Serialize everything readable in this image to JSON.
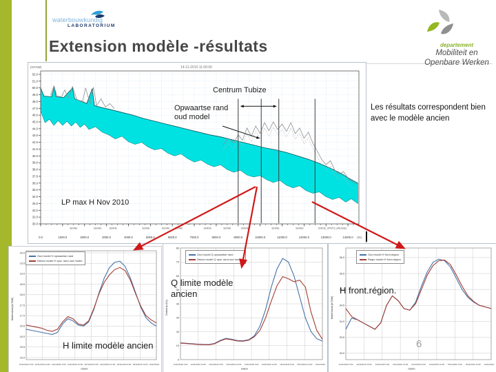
{
  "slide": {
    "title": "Extension modèle -résultats",
    "page_number": "6",
    "note": "Les résultats correspondent bien avec le modèle ancien"
  },
  "logos": {
    "waterbouwkundig": {
      "line1": "waterbouwkundig",
      "line2": "LABORATORIUM"
    },
    "mow": {
      "dept": "departement",
      "line1": "Mobiliteit en",
      "line2": "Openbare Werken"
    }
  },
  "colors": {
    "accent_olive": "#a5b72b",
    "band_cyan": "#00e2e2",
    "arrow_red": "#d01818",
    "series_blue": "#4472a8",
    "series_red": "#a23b32"
  },
  "chart_data": [
    {
      "type": "area",
      "title": "14-11-2010 11:00:00",
      "ylabel": "(mTAW)",
      "xunit": "(m)",
      "xlim": [
        0,
        14500
      ],
      "ylim": [
        30,
        52.5
      ],
      "xticks": [
        0,
        1000,
        2000,
        3000,
        4000,
        5000,
        6000,
        7000,
        8000,
        9000,
        10000,
        11000,
        12000,
        13000,
        14000
      ],
      "yticks": [
        30,
        31,
        32,
        33,
        34,
        35,
        36,
        37,
        38,
        39,
        40,
        41,
        42,
        43,
        44,
        45,
        46,
        47,
        48,
        49,
        50,
        51,
        52
      ],
      "segments": [
        [
          1500,
          "SENNE"
        ],
        [
          2600,
          "SENNE"
        ],
        [
          3300,
          "SENNE"
        ],
        [
          4800,
          "SENNE"
        ],
        [
          5700,
          "SENNE"
        ],
        [
          6300,
          "SENNE"
        ],
        [
          7600,
          "SENNE"
        ],
        [
          8500,
          "SENNE"
        ],
        [
          9300,
          "SENNE"
        ],
        [
          10700,
          "SENNE"
        ],
        [
          11800,
          "SENNE"
        ],
        [
          13300,
          "ZENNE_OPWTS_BRUSSEL"
        ]
      ],
      "band_top": [
        [
          0,
          50.0
        ],
        [
          150,
          48.8
        ],
        [
          500,
          48.7
        ],
        [
          620,
          50.2
        ],
        [
          700,
          48.7
        ],
        [
          1050,
          48.6
        ],
        [
          1450,
          50.0
        ],
        [
          1550,
          48.4
        ],
        [
          1900,
          48.0
        ],
        [
          2100,
          47.7
        ],
        [
          2350,
          49.9
        ],
        [
          2450,
          47.4
        ],
        [
          2800,
          47.1
        ],
        [
          3200,
          46.8
        ],
        [
          3700,
          46.4
        ],
        [
          4200,
          46.0
        ],
        [
          4700,
          45.5
        ],
        [
          5200,
          45.1
        ],
        [
          5700,
          44.7
        ],
        [
          6200,
          44.3
        ],
        [
          6700,
          43.9
        ],
        [
          7200,
          43.5
        ],
        [
          7700,
          43.1
        ],
        [
          8200,
          42.8
        ],
        [
          8700,
          42.4
        ],
        [
          9200,
          42.0
        ],
        [
          9700,
          41.6
        ],
        [
          10200,
          41.2
        ],
        [
          10700,
          40.9
        ],
        [
          11200,
          40.5
        ],
        [
          11700,
          40.0
        ],
        [
          12200,
          39.5
        ],
        [
          12700,
          38.9
        ],
        [
          13200,
          38.2
        ],
        [
          13700,
          37.4
        ],
        [
          14100,
          36.6
        ],
        [
          14450,
          36.0
        ]
      ],
      "band_bottom": [
        [
          0,
          46.6
        ],
        [
          200,
          44.9
        ],
        [
          400,
          45.4
        ],
        [
          600,
          44.5
        ],
        [
          800,
          45.2
        ],
        [
          1000,
          44.5
        ],
        [
          1200,
          45.1
        ],
        [
          1400,
          44.4
        ],
        [
          1600,
          45.0
        ],
        [
          1800,
          44.2
        ],
        [
          2000,
          44.7
        ],
        [
          2200,
          43.9
        ],
        [
          2500,
          44.3
        ],
        [
          2800,
          43.5
        ],
        [
          3100,
          43.1
        ],
        [
          3400,
          42.5
        ],
        [
          3700,
          42.9
        ],
        [
          4000,
          42.1
        ],
        [
          4300,
          41.7
        ],
        [
          4600,
          42.0
        ],
        [
          4900,
          41.3
        ],
        [
          5200,
          40.9
        ],
        [
          5500,
          41.1
        ],
        [
          5800,
          40.4
        ],
        [
          6100,
          40.0
        ],
        [
          6400,
          40.3
        ],
        [
          6700,
          39.6
        ],
        [
          7000,
          39.1
        ],
        [
          7300,
          39.4
        ],
        [
          7600,
          38.8
        ],
        [
          7900,
          38.4
        ],
        [
          8200,
          38.7
        ],
        [
          8500,
          38.0
        ],
        [
          8800,
          37.6
        ],
        [
          9100,
          37.9
        ],
        [
          9400,
          37.2
        ],
        [
          9700,
          36.9
        ],
        [
          10000,
          37.1
        ],
        [
          10300,
          36.5
        ],
        [
          10600,
          36.1
        ],
        [
          10900,
          36.4
        ],
        [
          11200,
          35.7
        ],
        [
          11500,
          35.3
        ],
        [
          11800,
          35.6
        ],
        [
          12100,
          34.9
        ],
        [
          12400,
          34.5
        ],
        [
          12700,
          34.7
        ],
        [
          13000,
          34.0
        ],
        [
          13300,
          33.6
        ],
        [
          13600,
          33.9
        ],
        [
          13900,
          33.2
        ],
        [
          14150,
          33.7
        ],
        [
          14450,
          33.0
        ]
      ],
      "terrain": [
        [
          8300,
          41.6
        ],
        [
          8550,
          42.6
        ],
        [
          8800,
          41.9
        ],
        [
          9000,
          43.1
        ],
        [
          9200,
          42.3
        ],
        [
          9400,
          44.1
        ],
        [
          9600,
          42.9
        ],
        [
          9800,
          44.4
        ],
        [
          10000,
          43.3
        ],
        [
          10200,
          44.9
        ],
        [
          10400,
          43.7
        ],
        [
          10600,
          45.0
        ],
        [
          10800,
          43.9
        ],
        [
          11000,
          44.7
        ],
        [
          11200,
          43.6
        ],
        [
          11400,
          44.9
        ],
        [
          11600,
          43.3
        ],
        [
          11800,
          44.1
        ],
        [
          12000,
          42.6
        ],
        [
          12200,
          43.5
        ],
        [
          12400,
          41.9
        ],
        [
          12600,
          40.7
        ],
        [
          12800,
          39.5
        ],
        [
          13000,
          38.7
        ],
        [
          13200,
          39.3
        ],
        [
          13400,
          37.9
        ],
        [
          13600,
          37.3
        ],
        [
          13800,
          37.7
        ],
        [
          14000,
          36.7
        ],
        [
          14200,
          36.2
        ],
        [
          14450,
          35.8
        ]
      ],
      "left_crest": [
        [
          450,
          48.9
        ],
        [
          600,
          50.3
        ],
        [
          750,
          48.8
        ],
        [
          950,
          48.7
        ],
        [
          1100,
          49.7
        ],
        [
          1250,
          48.5
        ],
        [
          1450,
          50.2
        ],
        [
          1650,
          48.3
        ],
        [
          1900,
          47.9
        ],
        [
          2050,
          50.0
        ],
        [
          2250,
          47.7
        ],
        [
          2400,
          50.1
        ],
        [
          2550,
          47.4
        ],
        [
          2750,
          48.4
        ],
        [
          2950,
          47.2
        ],
        [
          3150,
          47.7
        ],
        [
          3350,
          47.0
        ]
      ],
      "markers": [
        9000,
        10050,
        10850,
        12500
      ],
      "span": {
        "from": 9000,
        "to": 10850,
        "label": "Centrum Tubize"
      },
      "annotations": {
        "centrum": "Centrum Tubize",
        "opwaartse_line1": "Opwaartse rand",
        "opwaartse_line2": "oud model",
        "lp_max": "LP max H Nov 2010"
      }
    },
    {
      "type": "line",
      "label": "H limite modèle ancien",
      "ylabel": "Waterstand [mTAW]",
      "xlabel": "Datum",
      "ylim": [
        14.9,
        20.1
      ],
      "yticks": [
        20,
        19.5,
        19,
        18.5,
        18,
        17.5,
        17,
        16.5,
        16,
        15.5,
        15
      ],
      "ytick_labels": [
        "20.0",
        "19.5",
        "19.0",
        "18.5",
        "18.0",
        "17.5",
        "17.0",
        "16.5",
        "16.0",
        "15.5",
        "15.0"
      ],
      "xtick_labels": [
        "12/11/2010 0:00",
        "12/11/2010 12:00",
        "13/11/2010 0:00",
        "13/11/2010 12:00",
        "14/11/2010 0:00",
        "14/11/2010 12:00",
        "15/11/2010 0:00",
        "15/11/2010 12:00",
        "16/11/2010 0:00"
      ],
      "series": [
        {
          "name": "Oud model H opwaartse rand",
          "color": "#4472a8",
          "values": [
            16.35,
            16.3,
            16.25,
            16.2,
            16.15,
            16.1,
            16.2,
            16.6,
            16.85,
            16.75,
            16.55,
            16.5,
            16.7,
            17.3,
            18.1,
            18.8,
            19.3,
            19.55,
            19.6,
            19.35,
            18.8,
            18.1,
            17.4,
            16.9,
            16.65,
            16.5
          ]
        },
        {
          "name": "Nieuw model H opw. rand oud model",
          "color": "#a23b32",
          "values": [
            16.55,
            16.5,
            16.45,
            16.4,
            16.3,
            16.25,
            16.35,
            16.7,
            16.95,
            16.85,
            16.6,
            16.55,
            16.75,
            17.35,
            18.05,
            18.6,
            18.95,
            19.2,
            19.3,
            19.15,
            18.7,
            18.05,
            17.45,
            17.0,
            16.8,
            16.65
          ]
        }
      ]
    },
    {
      "type": "line",
      "label": "Q limite modèle ancien",
      "ylabel": "Debiet [m3/s]",
      "xlabel": "Datum",
      "ylim": [
        0,
        80
      ],
      "yticks": [
        80,
        70,
        60,
        50,
        40,
        30,
        20,
        10,
        0
      ],
      "ytick_labels": [
        "80",
        "70",
        "60",
        "50",
        "40",
        "30",
        "20",
        "10",
        "0"
      ],
      "xtick_labels": [
        "12/11/2010 0:00",
        "12/11/2010 12:00",
        "13/11/2010 0:00",
        "13/11/2010 12:00",
        "14/11/2010 0:00",
        "14/11/2010 12:00",
        "15/11/2010 0:00",
        "15/11/2010 12:00",
        "16/11/2010 0:00"
      ],
      "series": [
        {
          "name": "Oud model Q opwaartse rand",
          "color": "#4472a8",
          "values": [
            12,
            11.7,
            11.4,
            11.1,
            10.9,
            10.8,
            11.6,
            13.8,
            15.2,
            14.6,
            13.7,
            13.5,
            14.2,
            17,
            24,
            36,
            52,
            65,
            72.5,
            70,
            60,
            45,
            30,
            20,
            15,
            13.2
          ]
        },
        {
          "name": "Nieuw model Q opw. rand oud model",
          "color": "#a23b32",
          "values": [
            11.8,
            11.5,
            11.2,
            10.9,
            10.7,
            10.6,
            11.3,
            13.4,
            14.8,
            14.2,
            13.4,
            13.2,
            13.9,
            16.3,
            21,
            30,
            42,
            53,
            59.5,
            58,
            55.8,
            57,
            52,
            34,
            21,
            14.5
          ]
        }
      ]
    },
    {
      "type": "line",
      "label": "H front.région.",
      "ylabel": "Waterstand [mTAW]",
      "xlabel": "Datum",
      "ylim": [
        32.8,
        36.3
      ],
      "yticks": [
        36,
        35.5,
        35,
        34.5,
        34,
        33.5,
        33
      ],
      "ytick_labels": [
        "36.0",
        "35.5",
        "35.0",
        "34.5",
        "34.0",
        "33.5",
        "33.0"
      ],
      "xtick_labels": [
        "12/11/2010 0:00",
        "12/11/2010 12:00",
        "13/11/2010 0:00",
        "13/11/2010 12:00",
        "14/11/2010 0:00",
        "14/11/2010 12:00",
        "15/11/2010 0:00",
        "15/11/2010 12:00",
        "16/11/2010 0:00"
      ],
      "series": [
        {
          "name": "Oud model H front.région",
          "color": "#4472a8",
          "values": [
            33.75,
            34.1,
            34.05,
            33.95,
            33.85,
            33.75,
            33.95,
            34.5,
            34.8,
            34.65,
            34.4,
            34.35,
            34.6,
            35.1,
            35.55,
            35.85,
            35.95,
            35.9,
            35.7,
            35.35,
            35.0,
            34.75,
            34.6,
            34.5,
            34.45,
            34.4
          ]
        },
        {
          "name": "Regio model H front.région",
          "color": "#a23b32",
          "values": [
            34.4,
            34.15,
            34.05,
            33.95,
            33.85,
            33.75,
            33.95,
            34.5,
            34.8,
            34.65,
            34.4,
            34.35,
            34.55,
            35.0,
            35.45,
            35.75,
            35.9,
            35.92,
            35.78,
            35.45,
            35.1,
            34.8,
            34.62,
            34.5,
            34.45,
            34.4
          ]
        }
      ]
    }
  ],
  "arrows": {
    "color": "#d01818",
    "lines": [
      [
        371,
        271,
        196,
        362
      ],
      [
        373,
        271,
        351,
        387
      ],
      [
        453,
        293,
        586,
        360
      ]
    ]
  }
}
